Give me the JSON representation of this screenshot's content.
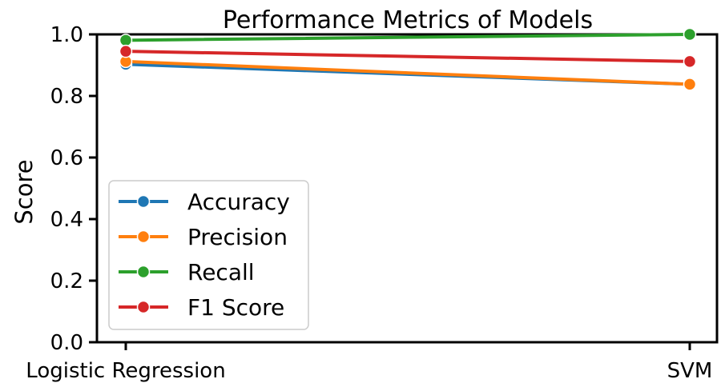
{
  "chart_data": {
    "type": "line",
    "title": "Performance Metrics of Models",
    "xlabel": "",
    "ylabel": "Score",
    "categories": [
      "Logistic Regression",
      "SVM"
    ],
    "ylim": [
      0.0,
      1.0
    ],
    "yticks": [
      "0.0",
      "0.2",
      "0.4",
      "0.6",
      "0.8",
      "1.0"
    ],
    "grid": false,
    "legend_position": "lower-left",
    "series": [
      {
        "name": "Accuracy",
        "color": "#1f77b4",
        "values": [
          0.903,
          0.838
        ]
      },
      {
        "name": "Precision",
        "color": "#ff7f0e",
        "values": [
          0.912,
          0.838
        ]
      },
      {
        "name": "Recall",
        "color": "#2ca02c",
        "values": [
          0.981,
          1.0
        ]
      },
      {
        "name": "F1 Score",
        "color": "#d62728",
        "values": [
          0.945,
          0.912
        ]
      }
    ]
  }
}
